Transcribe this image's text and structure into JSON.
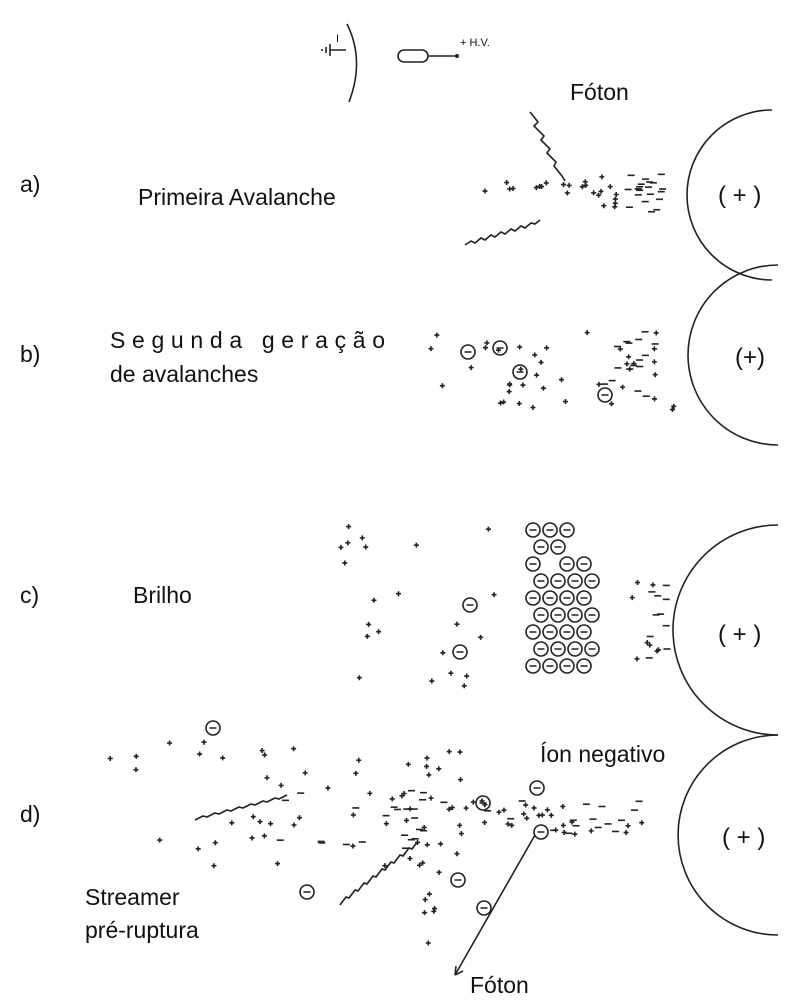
{
  "schematic": {
    "current": "I",
    "voltage": "+ H.V."
  },
  "panels": [
    {
      "label": "a)",
      "caption": [
        "Primeira Avalanche"
      ],
      "electrode": "( + )",
      "annotations": [
        "Fóton"
      ]
    },
    {
      "label": "b)",
      "caption": [
        "Segunda geração",
        "de avalanches"
      ],
      "electrode": "(+)"
    },
    {
      "label": "c)",
      "caption": [
        "Brilho"
      ],
      "electrode": "( + )"
    },
    {
      "label": "d)",
      "caption": [
        "Streamer",
        "pré-ruptura"
      ],
      "electrode": "( + )",
      "annotations": [
        "Íon negativo",
        "Fóton"
      ]
    }
  ]
}
